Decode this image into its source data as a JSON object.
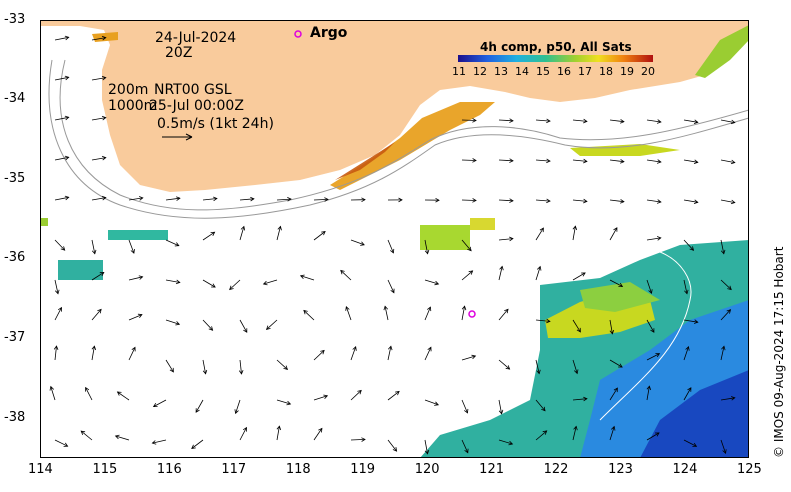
{
  "map": {
    "date": "24-Jul-2024",
    "hour": "20Z",
    "argo_label": "Argo",
    "depth_200": "200m",
    "depth_1000": "1000m",
    "product": "NRT00 GSL",
    "product_time": "25-Jul 00:00Z",
    "scale_label": "0.5m/s (1kt 24h)",
    "credit": "© IMOS 09-Aug-2024 17:15 Hobart",
    "argo_float": {
      "lon": 120.7,
      "lat": -36.7
    }
  },
  "colorbar": {
    "title": "4h comp, p50, All Sats",
    "ticks": [
      "11",
      "12",
      "13",
      "14",
      "15",
      "16",
      "17",
      "18",
      "19",
      "20"
    ]
  },
  "axes": {
    "x_ticks": [
      "114",
      "115",
      "116",
      "117",
      "118",
      "119",
      "120",
      "121",
      "122",
      "123",
      "124",
      "125"
    ],
    "y_ticks": [
      "-33",
      "-34",
      "-35",
      "-36",
      "-37",
      "-38"
    ],
    "xlim": [
      114,
      125
    ],
    "ylim": [
      -38.5,
      -33
    ]
  },
  "colors": {
    "land": "#f9cb9c",
    "argo": "#dd00dd",
    "warm": "#e8a020",
    "hot": "#c85a10",
    "cool": "#2a8ae0",
    "mid": "#30c0a0"
  }
}
